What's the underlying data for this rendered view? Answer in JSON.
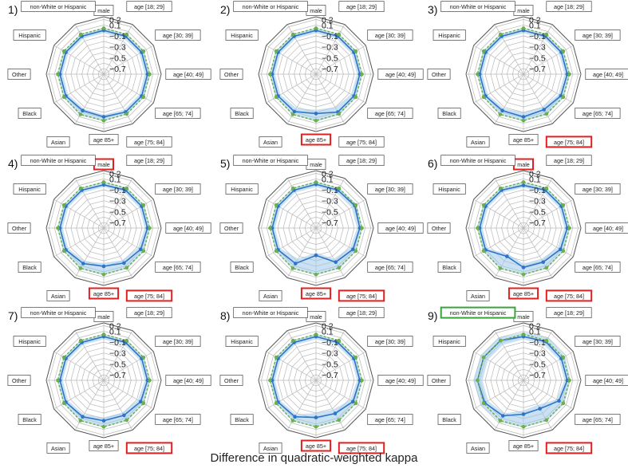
{
  "figure": {
    "caption": "Difference in quadratic-weighted kappa",
    "highlight_red": "#e02020",
    "highlight_green": "#3aa33a"
  },
  "chart_data": [
    {
      "type": "radar",
      "panel_label": "1)",
      "categories": [
        "male",
        "age [18; 29]",
        "age [30; 39]",
        "age [40; 49]",
        "age [65; 74]",
        "age [75; 84]",
        "age 85+",
        "Asian",
        "Black",
        "Other",
        "Hispanic",
        "non-White or Hispanic"
      ],
      "r_ticks": [
        "0.2",
        "0.1",
        "−0.1",
        "−0.3",
        "−0.5",
        "−0.7"
      ],
      "rlim": [
        -0.8,
        0.25
      ],
      "series": [
        {
          "values": [
            0.0,
            0.0,
            0.0,
            0.0,
            0.0,
            0.0,
            -0.02,
            -0.03,
            0.0,
            0.0,
            0.0,
            0.0
          ],
          "color": "#2b74c9"
        },
        {
          "values": [
            0.04,
            0.04,
            0.04,
            0.04,
            0.04,
            0.04,
            0.05,
            0.05,
            0.04,
            0.04,
            0.04,
            0.04
          ],
          "color": "#6ab04c"
        }
      ],
      "band": {
        "lower": [
          -0.05,
          -0.05,
          -0.05,
          -0.05,
          -0.05,
          -0.05,
          -0.06,
          -0.07,
          -0.05,
          -0.05,
          -0.05,
          -0.05
        ],
        "upper": [
          0.05,
          0.05,
          0.05,
          0.05,
          0.05,
          0.05,
          0.06,
          0.07,
          0.05,
          0.05,
          0.05,
          0.05
        ]
      },
      "highlight_red": [],
      "highlight_green": []
    },
    {
      "type": "radar",
      "panel_label": "2)",
      "categories": [
        "male",
        "age [18; 29]",
        "age [30; 39]",
        "age [40; 49]",
        "age [65; 74]",
        "age [75; 84]",
        "age 85+",
        "Asian",
        "Black",
        "Other",
        "Hispanic",
        "non-White or Hispanic"
      ],
      "r_ticks": [
        "0.2",
        "0.1",
        "−0.1",
        "−0.3",
        "−0.5",
        "−0.7"
      ],
      "rlim": [
        -0.8,
        0.25
      ],
      "series": [
        {
          "values": [
            0.0,
            0.0,
            0.0,
            0.0,
            0.0,
            0.0,
            -0.08,
            -0.01,
            0.0,
            0.0,
            0.0,
            0.0
          ],
          "color": "#2b74c9"
        },
        {
          "values": [
            0.04,
            0.04,
            0.04,
            0.04,
            0.04,
            0.04,
            0.05,
            0.05,
            0.04,
            0.04,
            0.04,
            0.04
          ],
          "color": "#6ab04c"
        }
      ],
      "band": {
        "lower": [
          -0.05,
          -0.05,
          -0.05,
          -0.05,
          -0.06,
          -0.1,
          -0.15,
          -0.08,
          -0.05,
          -0.05,
          -0.05,
          -0.05
        ],
        "upper": [
          0.05,
          0.05,
          0.05,
          0.05,
          0.05,
          0.06,
          0.07,
          0.06,
          0.05,
          0.05,
          0.05,
          0.05
        ]
      },
      "highlight_red": [
        "age 85+"
      ],
      "highlight_green": []
    },
    {
      "type": "radar",
      "panel_label": "3)",
      "categories": [
        "male",
        "age [18; 29]",
        "age [30; 39]",
        "age [40; 49]",
        "age [65; 74]",
        "age [75; 84]",
        "age 85+",
        "Asian",
        "Black",
        "Other",
        "Hispanic",
        "non-White or Hispanic"
      ],
      "r_ticks": [
        "0.2",
        "0.1",
        "−0.1",
        "−0.3",
        "−0.5",
        "−0.7"
      ],
      "rlim": [
        -0.8,
        0.25
      ],
      "series": [
        {
          "values": [
            0.0,
            0.0,
            0.0,
            0.0,
            -0.01,
            -0.05,
            -0.02,
            -0.03,
            0.0,
            0.0,
            0.0,
            0.0
          ],
          "color": "#2b74c9"
        },
        {
          "values": [
            0.04,
            0.04,
            0.04,
            0.04,
            0.04,
            0.04,
            0.05,
            0.05,
            0.04,
            0.04,
            0.04,
            0.04
          ],
          "color": "#6ab04c"
        }
      ],
      "band": {
        "lower": [
          -0.05,
          -0.05,
          -0.05,
          -0.05,
          -0.06,
          -0.1,
          -0.1,
          -0.08,
          -0.05,
          -0.05,
          -0.05,
          -0.05
        ],
        "upper": [
          0.05,
          0.05,
          0.05,
          0.05,
          0.05,
          0.06,
          0.06,
          0.06,
          0.05,
          0.05,
          0.05,
          0.05
        ]
      },
      "highlight_red": [
        "age [75; 84]"
      ],
      "highlight_green": []
    },
    {
      "type": "radar",
      "panel_label": "4)",
      "categories": [
        "male",
        "age [18; 29]",
        "age [30; 39]",
        "age [40; 49]",
        "age [65; 74]",
        "age [75; 84]",
        "age 85+",
        "Asian",
        "Black",
        "Other",
        "Hispanic",
        "non-White or Hispanic"
      ],
      "r_ticks": [
        "0.2",
        "0.1",
        "−0.1",
        "−0.3",
        "−0.5",
        "−0.7"
      ],
      "rlim": [
        -0.8,
        0.25
      ],
      "series": [
        {
          "values": [
            -0.01,
            0.0,
            0.0,
            0.0,
            -0.02,
            -0.06,
            -0.1,
            -0.05,
            0.0,
            0.0,
            0.0,
            0.0
          ],
          "color": "#2b74c9"
        },
        {
          "values": [
            0.04,
            0.04,
            0.04,
            0.04,
            0.04,
            0.04,
            0.05,
            0.05,
            0.04,
            0.04,
            0.04,
            0.04
          ],
          "color": "#6ab04c"
        }
      ],
      "band": {
        "lower": [
          -0.05,
          -0.05,
          -0.05,
          -0.05,
          -0.08,
          -0.12,
          -0.16,
          -0.1,
          -0.05,
          -0.05,
          -0.05,
          -0.05
        ],
        "upper": [
          0.05,
          0.05,
          0.05,
          0.05,
          0.05,
          0.06,
          0.06,
          0.06,
          0.05,
          0.05,
          0.05,
          0.05
        ]
      },
      "highlight_red": [
        "male",
        "age [75; 84]",
        "age 85+"
      ],
      "highlight_green": []
    },
    {
      "type": "radar",
      "panel_label": "5)",
      "categories": [
        "male",
        "age [18; 29]",
        "age [30; 39]",
        "age [40; 49]",
        "age [65; 74]",
        "age [75; 84]",
        "age 85+",
        "Asian",
        "Black",
        "Other",
        "Hispanic",
        "non-White or Hispanic"
      ],
      "r_ticks": [
        "0.2",
        "0.1",
        "−0.1",
        "−0.3",
        "−0.5",
        "−0.7"
      ],
      "rlim": [
        -0.8,
        0.25
      ],
      "series": [
        {
          "values": [
            0.0,
            0.0,
            0.02,
            0.0,
            -0.02,
            -0.08,
            -0.3,
            -0.05,
            0.0,
            0.0,
            0.0,
            0.0
          ],
          "color": "#2b74c9"
        },
        {
          "values": [
            0.04,
            0.04,
            0.04,
            0.04,
            0.04,
            0.04,
            0.05,
            0.05,
            0.04,
            0.04,
            0.04,
            0.04
          ],
          "color": "#6ab04c"
        }
      ],
      "band": {
        "lower": [
          -0.05,
          -0.05,
          -0.05,
          -0.05,
          -0.08,
          -0.15,
          -0.35,
          -0.15,
          -0.05,
          -0.05,
          -0.05,
          -0.05
        ],
        "upper": [
          0.05,
          0.05,
          0.06,
          0.05,
          0.05,
          0.06,
          0.06,
          0.06,
          0.05,
          0.05,
          0.05,
          0.05
        ]
      },
      "highlight_red": [
        "age [75; 84]",
        "age 85+"
      ],
      "highlight_green": []
    },
    {
      "type": "radar",
      "panel_label": "6)",
      "categories": [
        "male",
        "age [18; 29]",
        "age [30; 39]",
        "age [40; 49]",
        "age [65; 74]",
        "age [75; 84]",
        "age 85+",
        "Asian",
        "Black",
        "Other",
        "Hispanic",
        "non-White or Hispanic"
      ],
      "r_ticks": [
        "0.2",
        "0.1",
        "−0.1",
        "−0.3",
        "−0.5",
        "−0.7"
      ],
      "rlim": [
        -0.8,
        0.25
      ],
      "series": [
        {
          "values": [
            -0.02,
            0.0,
            0.0,
            0.0,
            -0.02,
            -0.08,
            -0.08,
            -0.2,
            0.0,
            0.0,
            0.0,
            0.0
          ],
          "color": "#2b74c9"
        },
        {
          "values": [
            0.04,
            0.04,
            0.04,
            0.04,
            0.04,
            0.04,
            0.05,
            0.05,
            0.04,
            0.04,
            0.04,
            0.04
          ],
          "color": "#6ab04c"
        }
      ],
      "band": {
        "lower": [
          -0.06,
          -0.05,
          -0.05,
          -0.05,
          -0.08,
          -0.15,
          -0.15,
          -0.25,
          -0.05,
          -0.05,
          -0.05,
          -0.05
        ],
        "upper": [
          0.05,
          0.05,
          0.05,
          0.05,
          0.05,
          0.06,
          0.06,
          0.06,
          0.05,
          0.05,
          0.05,
          0.05
        ]
      },
      "highlight_red": [
        "male",
        "age [75; 84]",
        "age 85+"
      ],
      "highlight_green": []
    },
    {
      "type": "radar",
      "panel_label": "7)",
      "categories": [
        "male",
        "age [18; 29]",
        "age [30; 39]",
        "age [40; 49]",
        "age [65; 74]",
        "age [75; 84]",
        "age 85+",
        "Asian",
        "Black",
        "Other",
        "Hispanic",
        "non-White or Hispanic"
      ],
      "r_ticks": [
        "0.2",
        "0.1",
        "−0.1",
        "−0.3",
        "−0.5",
        "−0.7"
      ],
      "rlim": [
        -0.8,
        0.25
      ],
      "series": [
        {
          "values": [
            0.0,
            0.0,
            0.0,
            0.0,
            -0.02,
            -0.06,
            -0.06,
            -0.03,
            0.0,
            0.0,
            0.0,
            0.0
          ],
          "color": "#2b74c9"
        },
        {
          "values": [
            0.04,
            0.04,
            0.04,
            0.04,
            0.04,
            0.04,
            0.05,
            0.05,
            0.04,
            0.04,
            0.04,
            0.04
          ],
          "color": "#6ab04c"
        }
      ],
      "band": {
        "lower": [
          -0.05,
          -0.05,
          -0.05,
          -0.05,
          -0.08,
          -0.12,
          -0.12,
          -0.08,
          -0.05,
          -0.05,
          -0.05,
          -0.05
        ],
        "upper": [
          0.05,
          0.05,
          0.05,
          0.05,
          0.05,
          0.06,
          0.06,
          0.06,
          0.05,
          0.05,
          0.05,
          0.05
        ]
      },
      "highlight_red": [
        "age [75; 84]"
      ],
      "highlight_green": []
    },
    {
      "type": "radar",
      "panel_label": "8)",
      "categories": [
        "male",
        "age [18; 29]",
        "age [30; 39]",
        "age [40; 49]",
        "age [65; 74]",
        "age [75; 84]",
        "age 85+",
        "Asian",
        "Black",
        "Other",
        "Hispanic",
        "non-White or Hispanic"
      ],
      "r_ticks": [
        "0.2",
        "0.1",
        "−0.1",
        "−0.3",
        "−0.5",
        "−0.7"
      ],
      "rlim": [
        -0.8,
        0.25
      ],
      "series": [
        {
          "values": [
            0.0,
            0.0,
            0.0,
            0.0,
            -0.02,
            -0.1,
            -0.12,
            -0.03,
            0.0,
            0.0,
            0.0,
            0.0
          ],
          "color": "#2b74c9"
        },
        {
          "values": [
            0.04,
            0.04,
            0.04,
            0.04,
            0.04,
            0.04,
            0.05,
            0.05,
            0.04,
            0.04,
            0.04,
            0.04
          ],
          "color": "#6ab04c"
        }
      ],
      "band": {
        "lower": [
          -0.05,
          -0.05,
          -0.05,
          -0.05,
          -0.08,
          -0.18,
          -0.2,
          -0.08,
          -0.05,
          -0.05,
          -0.05,
          -0.05
        ],
        "upper": [
          0.05,
          0.05,
          0.05,
          0.05,
          0.05,
          0.06,
          0.06,
          0.06,
          0.05,
          0.05,
          0.05,
          0.05
        ]
      },
      "highlight_red": [
        "age [75; 84]",
        "age 85+"
      ],
      "highlight_green": []
    },
    {
      "type": "radar",
      "panel_label": "9)",
      "categories": [
        "male",
        "age [18; 29]",
        "age [30; 39]",
        "age [40; 49]",
        "age [65; 74]",
        "age [75; 84]",
        "age 85+",
        "Asian",
        "Black",
        "Other",
        "Hispanic",
        "non-White or Hispanic"
      ],
      "r_ticks": [
        "0.2",
        "0.1",
        "−0.1",
        "−0.3",
        "−0.5",
        "−0.7"
      ],
      "rlim": [
        -0.8,
        0.25
      ],
      "series": [
        {
          "values": [
            0.0,
            0.02,
            0.0,
            0.0,
            -0.05,
            -0.2,
            -0.18,
            -0.05,
            0.02,
            0.04,
            0.04,
            0.04
          ],
          "color": "#2b74c9"
        },
        {
          "values": [
            0.04,
            0.04,
            0.04,
            0.04,
            0.04,
            0.04,
            0.05,
            0.05,
            0.04,
            0.04,
            0.04,
            0.04
          ],
          "color": "#6ab04c"
        }
      ],
      "band": {
        "lower": [
          -0.05,
          -0.05,
          -0.05,
          -0.05,
          -0.1,
          -0.28,
          -0.25,
          -0.1,
          -0.05,
          -0.05,
          -0.05,
          -0.05
        ],
        "upper": [
          0.08,
          0.1,
          0.08,
          0.06,
          0.06,
          0.06,
          0.06,
          0.08,
          0.1,
          0.12,
          0.1,
          0.1
        ]
      },
      "highlight_red": [
        "age [75; 84]"
      ],
      "highlight_green": [
        "non-White or Hispanic"
      ]
    }
  ]
}
